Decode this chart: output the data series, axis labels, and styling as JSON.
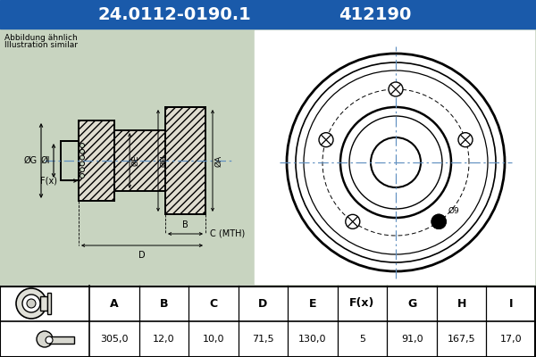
{
  "title_part": "24.0112-0190.1",
  "title_num": "412190",
  "header_bg": "#1a5aaa",
  "header_text_color": "#ffffff",
  "diagram_bg": "#c8d4c0",
  "front_bg": "#ffffff",
  "table_headers": [
    "A",
    "B",
    "C",
    "D",
    "E",
    "F(x)",
    "G",
    "H",
    "I"
  ],
  "table_values": [
    "305,0",
    "12,0",
    "10,0",
    "71,5",
    "130,0",
    "5",
    "91,0",
    "167,5",
    "17,0"
  ],
  "note_line1": "Abbildung ähnlich",
  "note_line2": "Illustration similar",
  "label_9": "Ø9",
  "centerline_color": "#6090c0",
  "centerline_dash_color": "#8090b0"
}
